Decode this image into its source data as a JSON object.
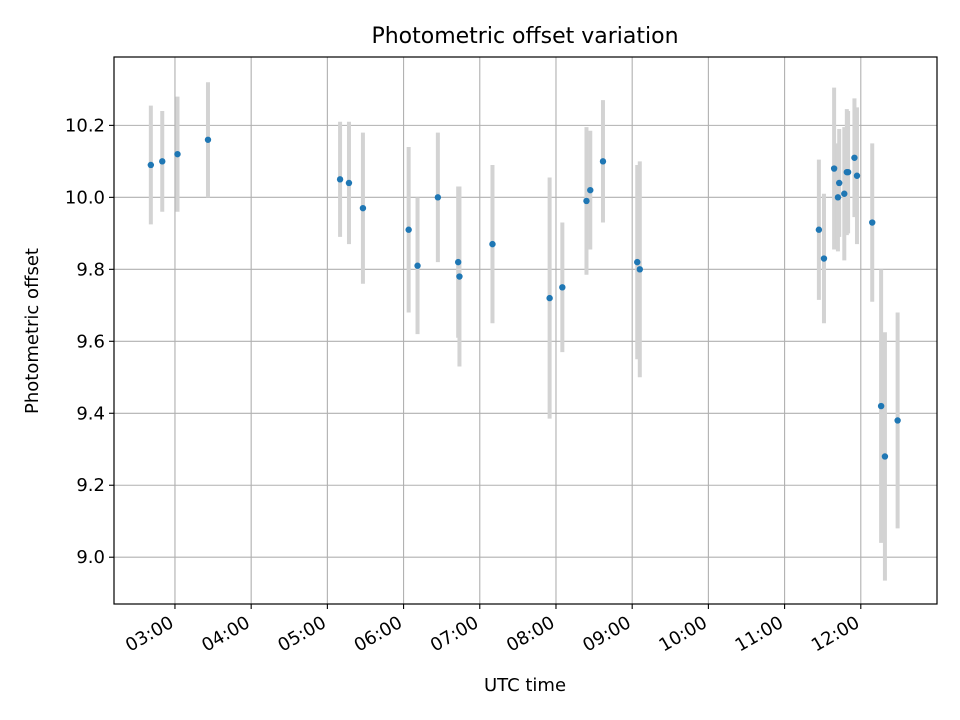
{
  "chart_data": {
    "type": "scatter",
    "title": "Photometric offset variation",
    "xlabel": "UTC time",
    "ylabel": "Photometric offset",
    "xlim": [
      "02:12",
      "13:00"
    ],
    "ylim": [
      8.87,
      10.39
    ],
    "x_ticks": [
      "03:00",
      "04:00",
      "05:00",
      "06:00",
      "07:00",
      "08:00",
      "09:00",
      "10:00",
      "11:00",
      "12:00"
    ],
    "y_ticks": [
      9.0,
      9.2,
      9.4,
      9.6,
      9.8,
      10.0,
      10.2
    ],
    "grid": true,
    "marker_color": "#1f77b4",
    "errorbar_color": "#d3d3d3",
    "points": [
      {
        "time": "02:41",
        "y": 10.09,
        "yerr": 0.165
      },
      {
        "time": "02:50",
        "y": 10.1,
        "yerr": 0.14
      },
      {
        "time": "03:02",
        "y": 10.12,
        "yerr": 0.16
      },
      {
        "time": "03:26",
        "y": 10.16,
        "yerr": 0.16
      },
      {
        "time": "05:10",
        "y": 10.05,
        "yerr": 0.16
      },
      {
        "time": "05:17",
        "y": 10.04,
        "yerr": 0.17
      },
      {
        "time": "05:28",
        "y": 9.97,
        "yerr": 0.21
      },
      {
        "time": "06:04",
        "y": 9.91,
        "yerr": 0.23
      },
      {
        "time": "06:11",
        "y": 9.81,
        "yerr": 0.19
      },
      {
        "time": "06:27",
        "y": 10.0,
        "yerr": 0.18
      },
      {
        "time": "06:43",
        "y": 9.82,
        "yerr": 0.21
      },
      {
        "time": "06:44",
        "y": 9.78,
        "yerr": 0.25
      },
      {
        "time": "07:10",
        "y": 9.87,
        "yerr": 0.22
      },
      {
        "time": "07:55",
        "y": 9.72,
        "yerr": 0.335
      },
      {
        "time": "08:05",
        "y": 9.75,
        "yerr": 0.18
      },
      {
        "time": "08:24",
        "y": 9.99,
        "yerr": 0.205
      },
      {
        "time": "08:27",
        "y": 10.02,
        "yerr": 0.165
      },
      {
        "time": "08:37",
        "y": 10.1,
        "yerr": 0.17
      },
      {
        "time": "09:04",
        "y": 9.82,
        "yerr": 0.27
      },
      {
        "time": "09:06",
        "y": 9.8,
        "yerr": 0.3
      },
      {
        "time": "11:27",
        "y": 9.91,
        "yerr": 0.195
      },
      {
        "time": "11:31",
        "y": 9.83,
        "yerr": 0.18
      },
      {
        "time": "11:39",
        "y": 10.08,
        "yerr": 0.225
      },
      {
        "time": "11:42",
        "y": 10.0,
        "yerr": 0.15
      },
      {
        "time": "11:43",
        "y": 10.04,
        "yerr": 0.15
      },
      {
        "time": "11:47",
        "y": 10.01,
        "yerr": 0.185
      },
      {
        "time": "11:49",
        "y": 10.07,
        "yerr": 0.175
      },
      {
        "time": "11:50",
        "y": 10.07,
        "yerr": 0.17
      },
      {
        "time": "11:55",
        "y": 10.11,
        "yerr": 0.165
      },
      {
        "time": "11:57",
        "y": 10.06,
        "yerr": 0.19
      },
      {
        "time": "12:09",
        "y": 9.93,
        "yerr": 0.22
      },
      {
        "time": "12:16",
        "y": 9.42,
        "yerr": 0.38
      },
      {
        "time": "12:19",
        "y": 9.28,
        "yerr": 0.345
      },
      {
        "time": "12:29",
        "y": 9.38,
        "yerr": 0.3
      }
    ]
  }
}
